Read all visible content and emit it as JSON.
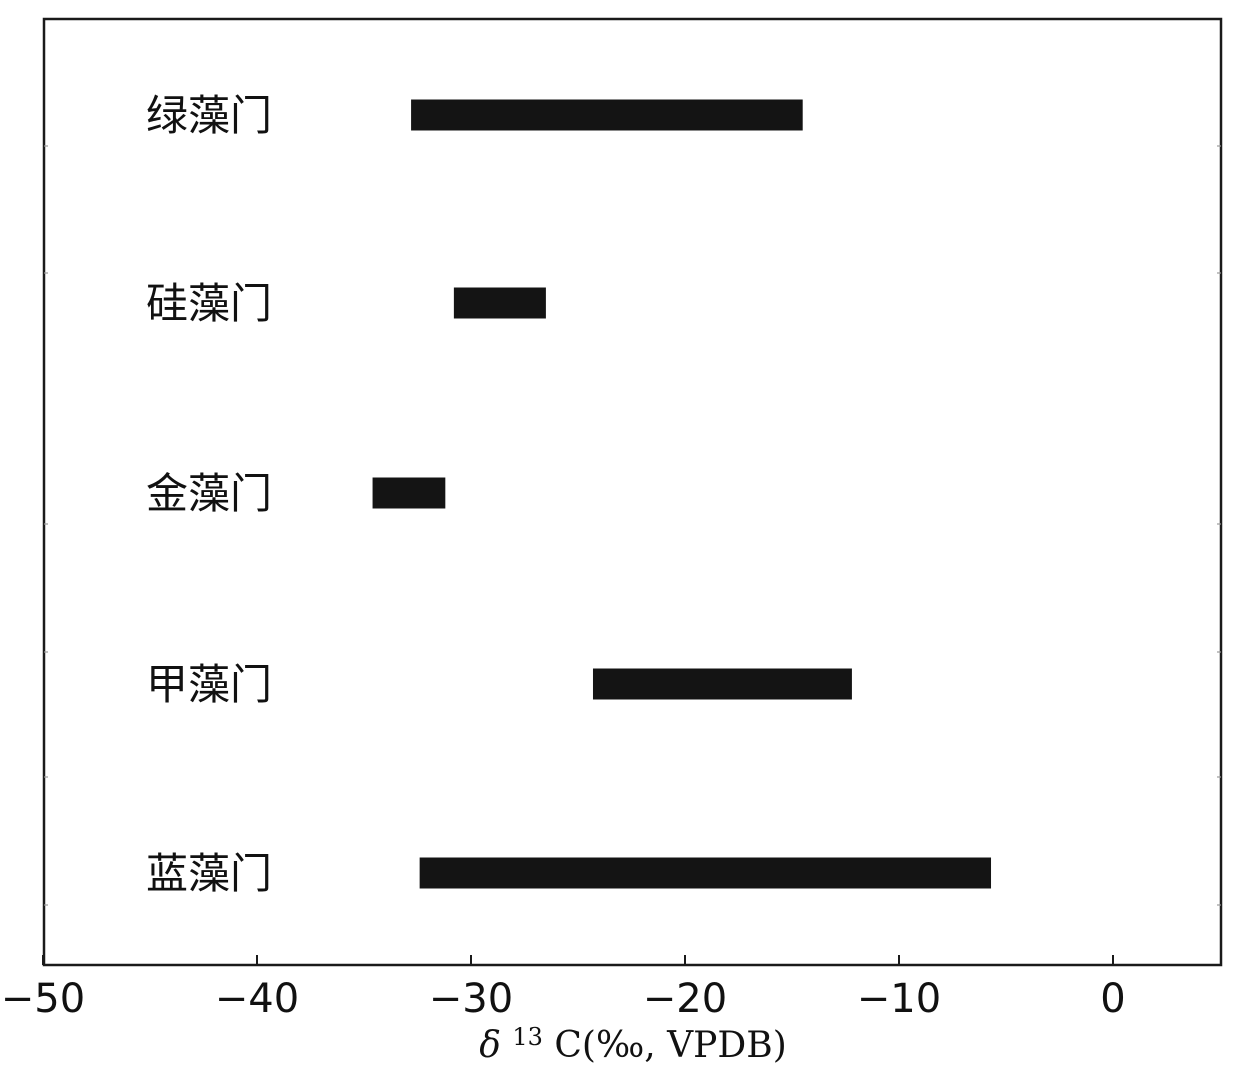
{
  "chart_data": {
    "type": "bar",
    "orientation": "horizontal",
    "style": "range",
    "categories": [
      "绿藻门",
      "硅藻门",
      "金藻门",
      "甲藻门",
      "蓝藻门"
    ],
    "ranges": [
      [
        -32.8,
        -14.5
      ],
      [
        -30.8,
        -26.5
      ],
      [
        -34.6,
        -31.2
      ],
      [
        -24.3,
        -12.2
      ],
      [
        -32.4,
        -5.7
      ]
    ],
    "xlim": [
      -50,
      5
    ],
    "xticks": [
      -50,
      -40,
      -30,
      -20,
      -10,
      0
    ],
    "xtick_labels": [
      "−50",
      "−40",
      "−30",
      "−20",
      "−10",
      "0"
    ],
    "xlabel_prefix": "δ",
    "xlabel_sup": "13",
    "xlabel_main": "C(‰, VPDB)",
    "title": "",
    "grid": false,
    "bar_color": "#141414"
  }
}
